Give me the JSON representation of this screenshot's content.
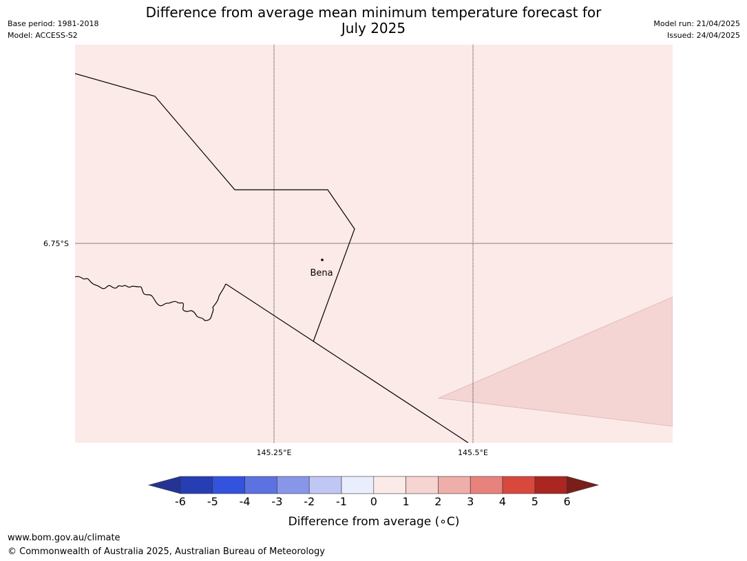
{
  "header": {
    "title_line1": "Difference from average mean minimum temperature forecast for",
    "title_line2": "July 2025",
    "base_period": "Base period: 1981-2018",
    "model": "Model: ACCESS-S2",
    "model_run": "Model run: 21/04/2025",
    "issued": "Issued: 24/04/2025"
  },
  "map": {
    "lat_label": "6.75°S",
    "lon_labels": [
      "145.25°E",
      "145.5°E"
    ],
    "place": {
      "name": "Bena"
    },
    "colors": {
      "background_anomaly": "#fbeae8",
      "higher_anomaly": "#f4d5d3",
      "border": "#000000",
      "gridline_lat": "#8a7a78"
    }
  },
  "legend": {
    "ticks": [
      "-6",
      "-5",
      "-4",
      "-3",
      "-2",
      "-1",
      "0",
      "1",
      "2",
      "3",
      "4",
      "5",
      "6"
    ],
    "colors": [
      "#253494",
      "#273db3",
      "#3352dd",
      "#5c72e2",
      "#8896ea",
      "#c0c7f4",
      "#eaedfc",
      "#fbeae8",
      "#f6d4d1",
      "#eeaea9",
      "#e7827c",
      "#d9483d",
      "#ab2621",
      "#7a1e1a"
    ],
    "label": "Difference from average (∘C)"
  },
  "footer": {
    "url": "www.bom.gov.au/climate",
    "copyright": "© Commonwealth of Australia 2025, Australian Bureau of Meteorology"
  }
}
